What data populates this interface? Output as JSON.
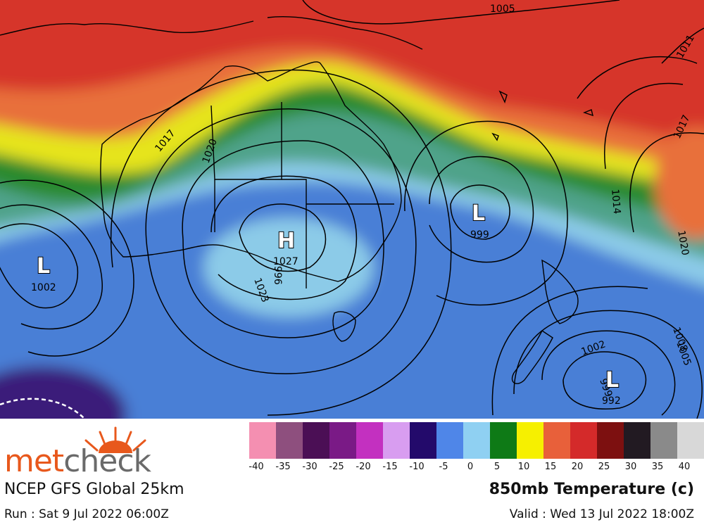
{
  "branding": {
    "logo_part1": "met",
    "logo_part2": "check"
  },
  "model_name": "NCEP GFS Global 25km",
  "run_time": "Run : Sat 9 Jul 2022 06:00Z",
  "parameter_title": "850mb Temperature (c)",
  "valid_time": "Valid : Wed 13 Jul 2022 18:00Z",
  "legend": {
    "ticks": [
      "-40",
      "-35",
      "-30",
      "-25",
      "-20",
      "-15",
      "-10",
      "-5",
      "0",
      "5",
      "10",
      "15",
      "20",
      "25",
      "30",
      "35",
      "40"
    ],
    "colors": [
      "#f48fb1",
      "#8e4f7e",
      "#4b0f55",
      "#7a1a86",
      "#c330c0",
      "#d89df0",
      "#230a6b",
      "#4f86e8",
      "#8fd0f2",
      "#0e7a16",
      "#f6f000",
      "#e8603a",
      "#d42a2a",
      "#7d1010",
      "#221a22",
      "#8a8a8a",
      "#d8d8d8"
    ]
  },
  "pressure_centers": [
    {
      "type": "L",
      "value": "1002"
    },
    {
      "type": "H",
      "value": "1027"
    },
    {
      "type": "L",
      "value": "999"
    },
    {
      "type": "L",
      "value": "992"
    }
  ],
  "isobar_labels": [
    "1005",
    "1011",
    "1017",
    "1017",
    "1020",
    "1023",
    "1014",
    "1020",
    "1002",
    "1005",
    "1008",
    "996",
    "999"
  ],
  "map_colors": {
    "tropical_red": "#d6342b",
    "orange": "#e8703a",
    "yellow": "#e6e41a",
    "green": "#2a8a2e",
    "teal": "#4fa38a",
    "light_blue": "#8ccbe8",
    "blue": "#4a7fd6",
    "purple": "#3a1a7a"
  }
}
